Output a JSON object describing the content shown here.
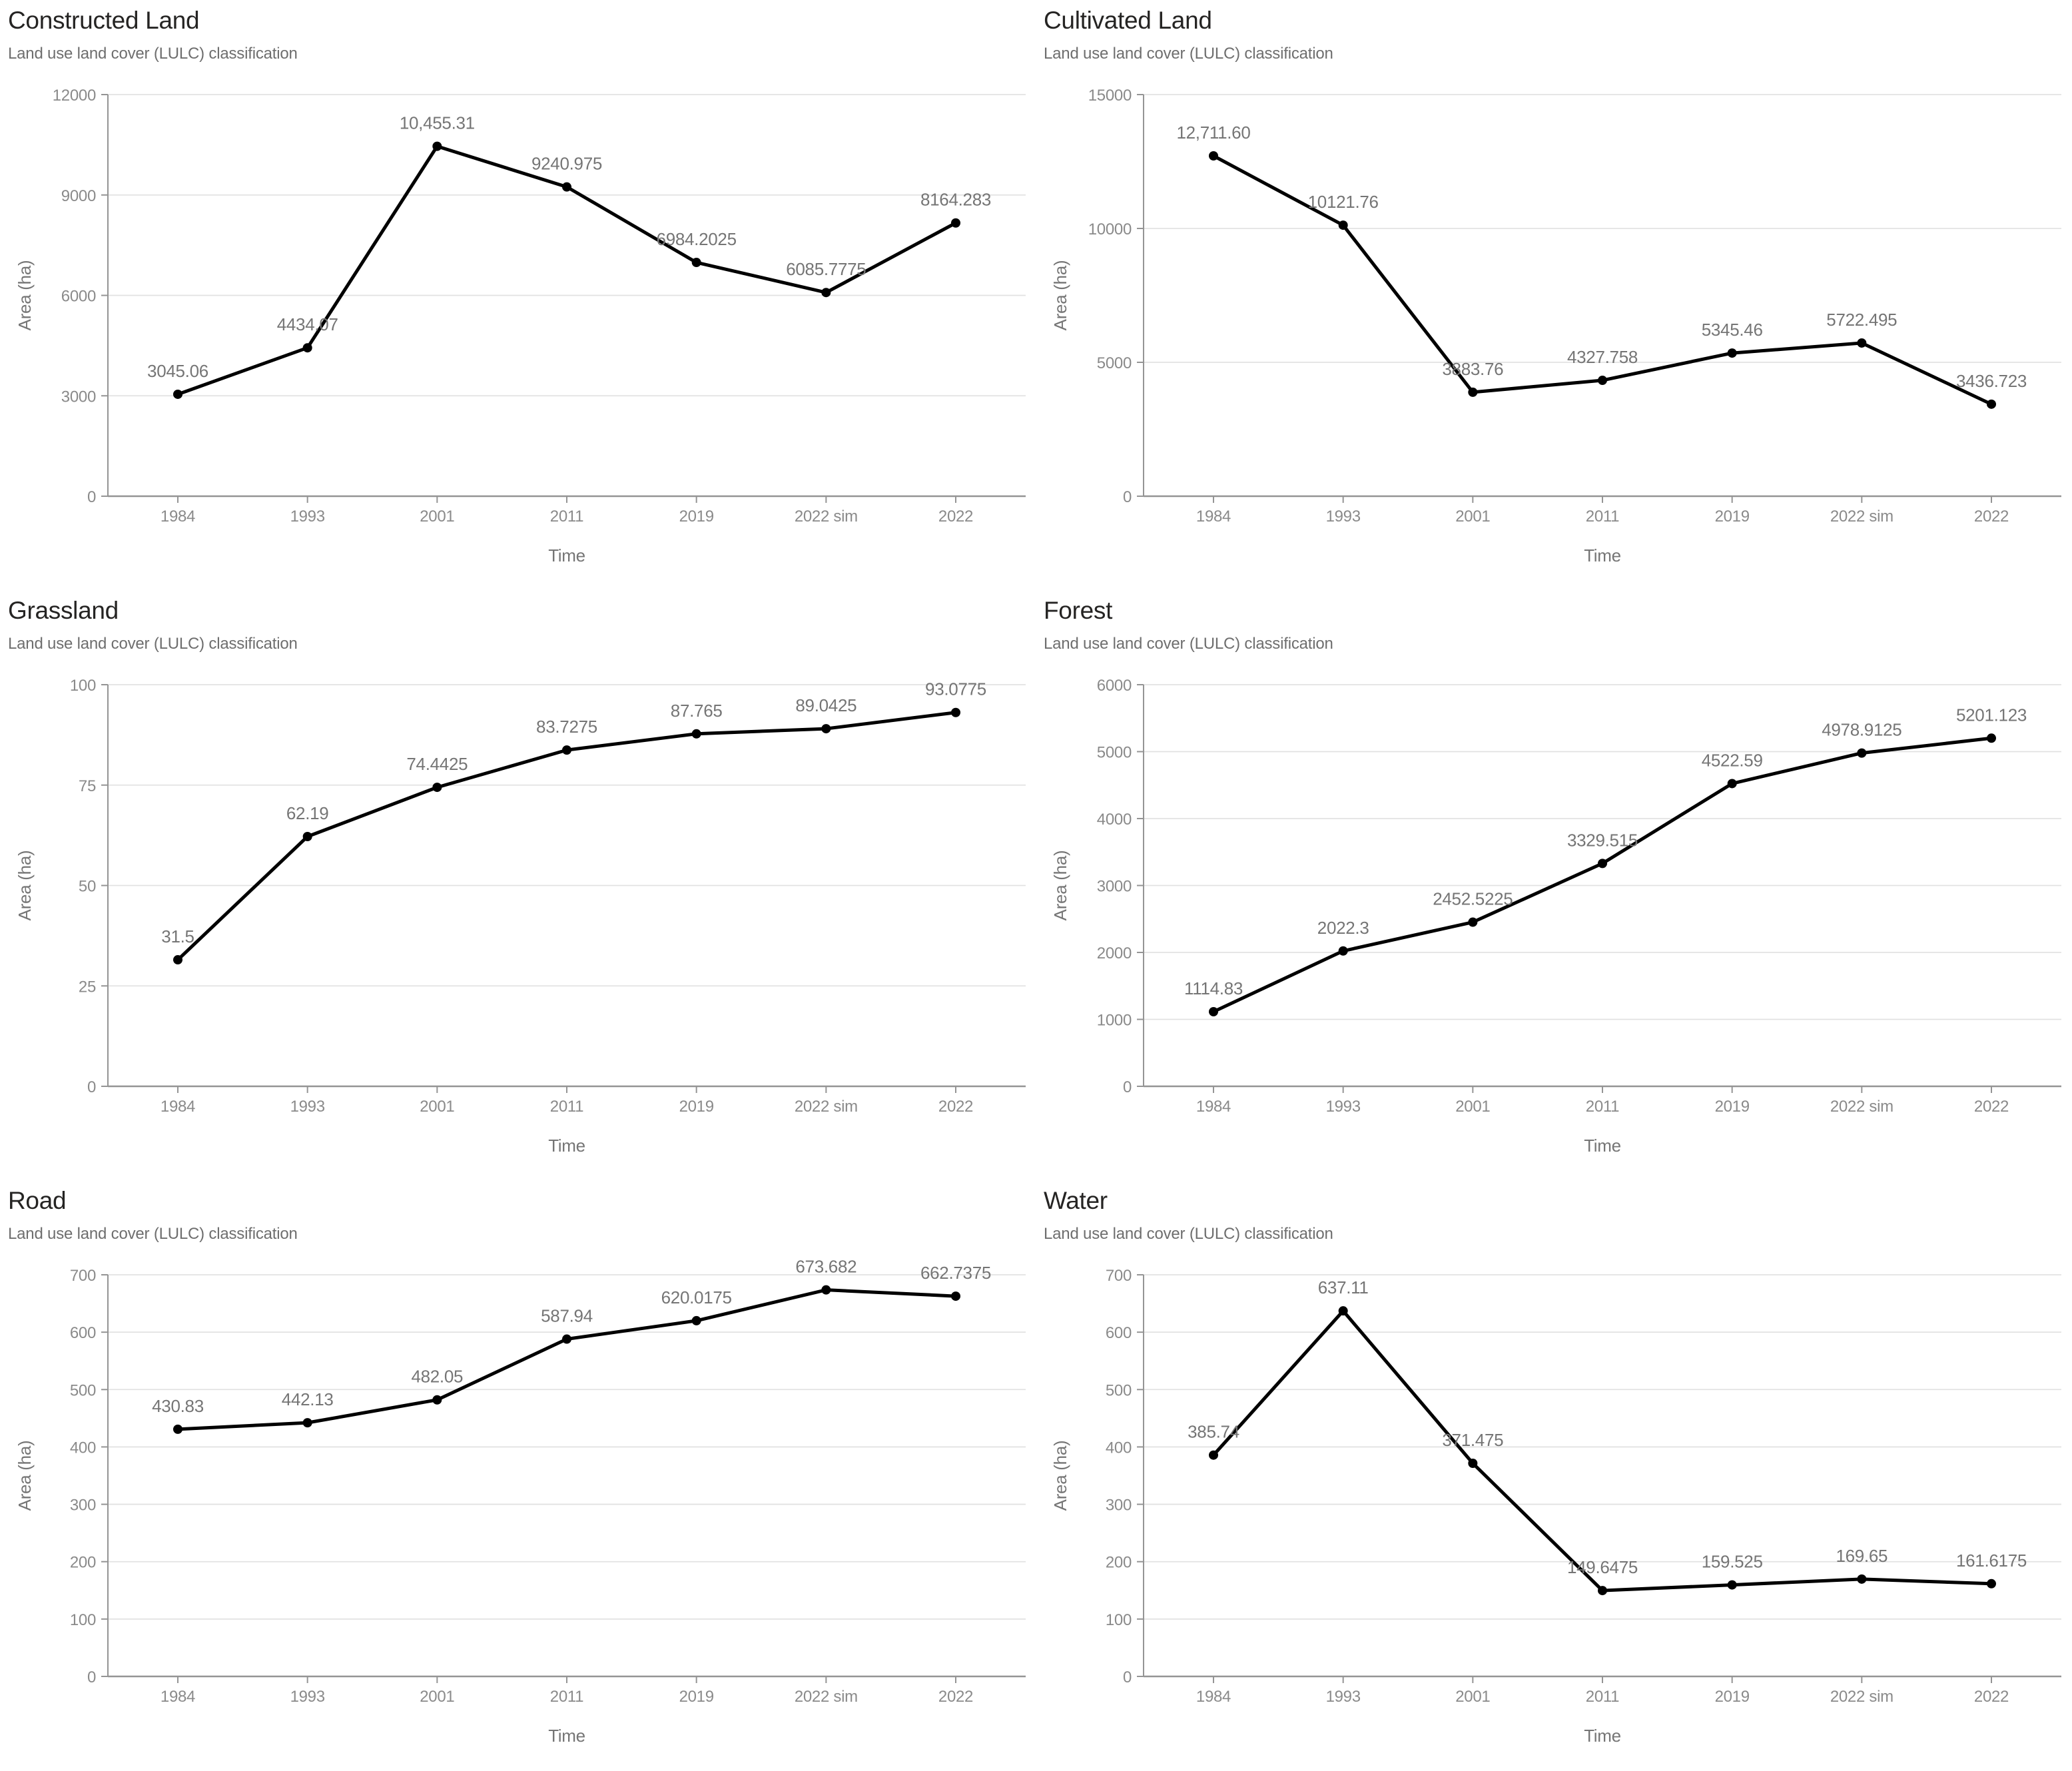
{
  "colors": {
    "line": "#000000",
    "marker": "#000000",
    "data_label": "#757575",
    "tick_label": "#8a8a8a",
    "axis_title": "#757575",
    "axis_line": "#949494",
    "gridline": "#e2e2e2",
    "title": "#252423",
    "subtitle": "#6e6e6e"
  },
  "chart_data": [
    {
      "type": "line",
      "title": "Constructed Land",
      "subtitle": "Land use land cover (LULC) classification",
      "xlabel": "Time",
      "ylabel": "Area (ha)",
      "categories": [
        "1984",
        "1993",
        "2001",
        "2011",
        "2019",
        "2022 sim",
        "2022"
      ],
      "values": [
        3045.06,
        4434.07,
        10455.31,
        9240.975,
        6984.2025,
        6085.7775,
        8164.283
      ],
      "labels": [
        "3045.06",
        "4434.07",
        "10,455.31",
        "9240.975",
        "6984.2025",
        "6085.7775",
        "8164.283"
      ],
      "ylim": [
        0,
        12000
      ],
      "yticks": [
        0,
        3000,
        6000,
        9000,
        12000
      ],
      "grid": true,
      "legend": false
    },
    {
      "type": "line",
      "title": "Cultivated Land",
      "subtitle": "Land use land cover (LULC) classification",
      "xlabel": "Time",
      "ylabel": "Area (ha)",
      "categories": [
        "1984",
        "1993",
        "2001",
        "2011",
        "2019",
        "2022 sim",
        "2022"
      ],
      "values": [
        12711.6,
        10121.76,
        3883.76,
        4327.758,
        5345.46,
        5722.495,
        3436.723
      ],
      "labels": [
        "12,711.60",
        "10121.76",
        "3883.76",
        "4327.758",
        "5345.46",
        "5722.495",
        "3436.723"
      ],
      "ylim": [
        0,
        15000
      ],
      "yticks": [
        0,
        5000,
        10000,
        15000
      ],
      "grid": true,
      "legend": false
    },
    {
      "type": "line",
      "title": "Grassland",
      "subtitle": "Land use land cover (LULC) classification",
      "xlabel": "Time",
      "ylabel": "Area (ha)",
      "categories": [
        "1984",
        "1993",
        "2001",
        "2011",
        "2019",
        "2022 sim",
        "2022"
      ],
      "values": [
        31.5,
        62.19,
        74.4425,
        83.7275,
        87.765,
        89.0425,
        93.0775
      ],
      "labels": [
        "31.5",
        "62.19",
        "74.4425",
        "83.7275",
        "87.765",
        "89.0425",
        "93.0775"
      ],
      "ylim": [
        0,
        100
      ],
      "yticks": [
        0,
        25,
        50,
        75,
        100
      ],
      "grid": true,
      "legend": false
    },
    {
      "type": "line",
      "title": "Forest",
      "subtitle": "Land use land cover (LULC) classification",
      "xlabel": "Time",
      "ylabel": "Area (ha)",
      "categories": [
        "1984",
        "1993",
        "2001",
        "2011",
        "2019",
        "2022 sim",
        "2022"
      ],
      "values": [
        1114.83,
        2022.3,
        2452.5225,
        3329.515,
        4522.59,
        4978.9125,
        5201.123
      ],
      "labels": [
        "1114.83",
        "2022.3",
        "2452.5225",
        "3329.515",
        "4522.59",
        "4978.9125",
        "5201.123"
      ],
      "ylim": [
        0,
        6000
      ],
      "yticks": [
        0,
        1000,
        2000,
        3000,
        4000,
        5000,
        6000
      ],
      "grid": true,
      "legend": false
    },
    {
      "type": "line",
      "title": "Road",
      "subtitle": "Land use land cover (LULC) classification",
      "xlabel": "Time",
      "ylabel": "Area (ha)",
      "categories": [
        "1984",
        "1993",
        "2001",
        "2011",
        "2019",
        "2022 sim",
        "2022"
      ],
      "values": [
        430.83,
        442.13,
        482.05,
        587.94,
        620.0175,
        673.682,
        662.7375
      ],
      "labels": [
        "430.83",
        "442.13",
        "482.05",
        "587.94",
        "620.0175",
        "673.682",
        "662.7375"
      ],
      "ylim": [
        0,
        700
      ],
      "yticks": [
        0,
        100,
        200,
        300,
        400,
        500,
        600,
        700
      ],
      "grid": true,
      "legend": false
    },
    {
      "type": "line",
      "title": "Water",
      "subtitle": "Land use land cover (LULC) classification",
      "xlabel": "Time",
      "ylabel": "Area (ha)",
      "categories": [
        "1984",
        "1993",
        "2001",
        "2011",
        "2019",
        "2022 sim",
        "2022"
      ],
      "values": [
        385.74,
        637.11,
        371.475,
        149.6475,
        159.525,
        169.65,
        161.6175
      ],
      "labels": [
        "385.74",
        "637.11",
        "371.475",
        "149.6475",
        "159.525",
        "169.65",
        "161.6175"
      ],
      "ylim": [
        0,
        700
      ],
      "yticks": [
        0,
        100,
        200,
        300,
        400,
        500,
        600,
        700
      ],
      "grid": true,
      "legend": false
    }
  ]
}
